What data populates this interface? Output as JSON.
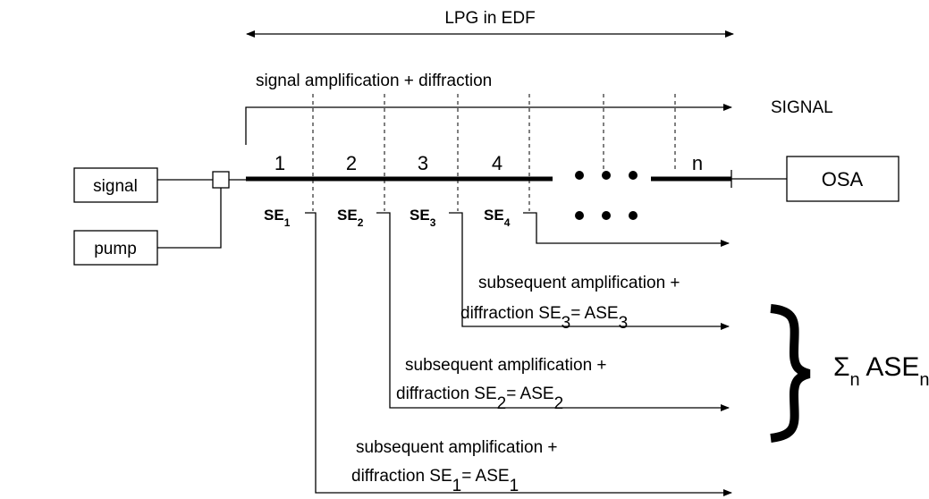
{
  "diagram": {
    "span_label": "LPG in EDF",
    "signal_path_label": "signal amplification + diffraction",
    "signal_output": "SIGNAL",
    "boxes": [
      "signal",
      "pump",
      "OSA"
    ],
    "sections": [
      "1",
      "2",
      "3",
      "4",
      "n"
    ],
    "se_labels": [
      [
        "SE",
        "1"
      ],
      [
        "SE",
        "2"
      ],
      [
        "SE",
        "3"
      ],
      [
        "SE",
        "4"
      ]
    ],
    "descriptions": [
      {
        "line1": "subsequent amplification +",
        "line2": [
          "diffraction SE",
          "3",
          "=  ASE",
          "3"
        ]
      },
      {
        "line1": "subsequent amplification +",
        "line2": [
          "diffraction SE",
          "2",
          "=  ASE",
          "2"
        ]
      },
      {
        "line1": "subsequent amplification +",
        "line2": [
          "diffraction SE",
          "1",
          "=  ASE",
          "1"
        ]
      }
    ],
    "sum": [
      "Σ",
      "n",
      " ASE",
      "n"
    ]
  }
}
